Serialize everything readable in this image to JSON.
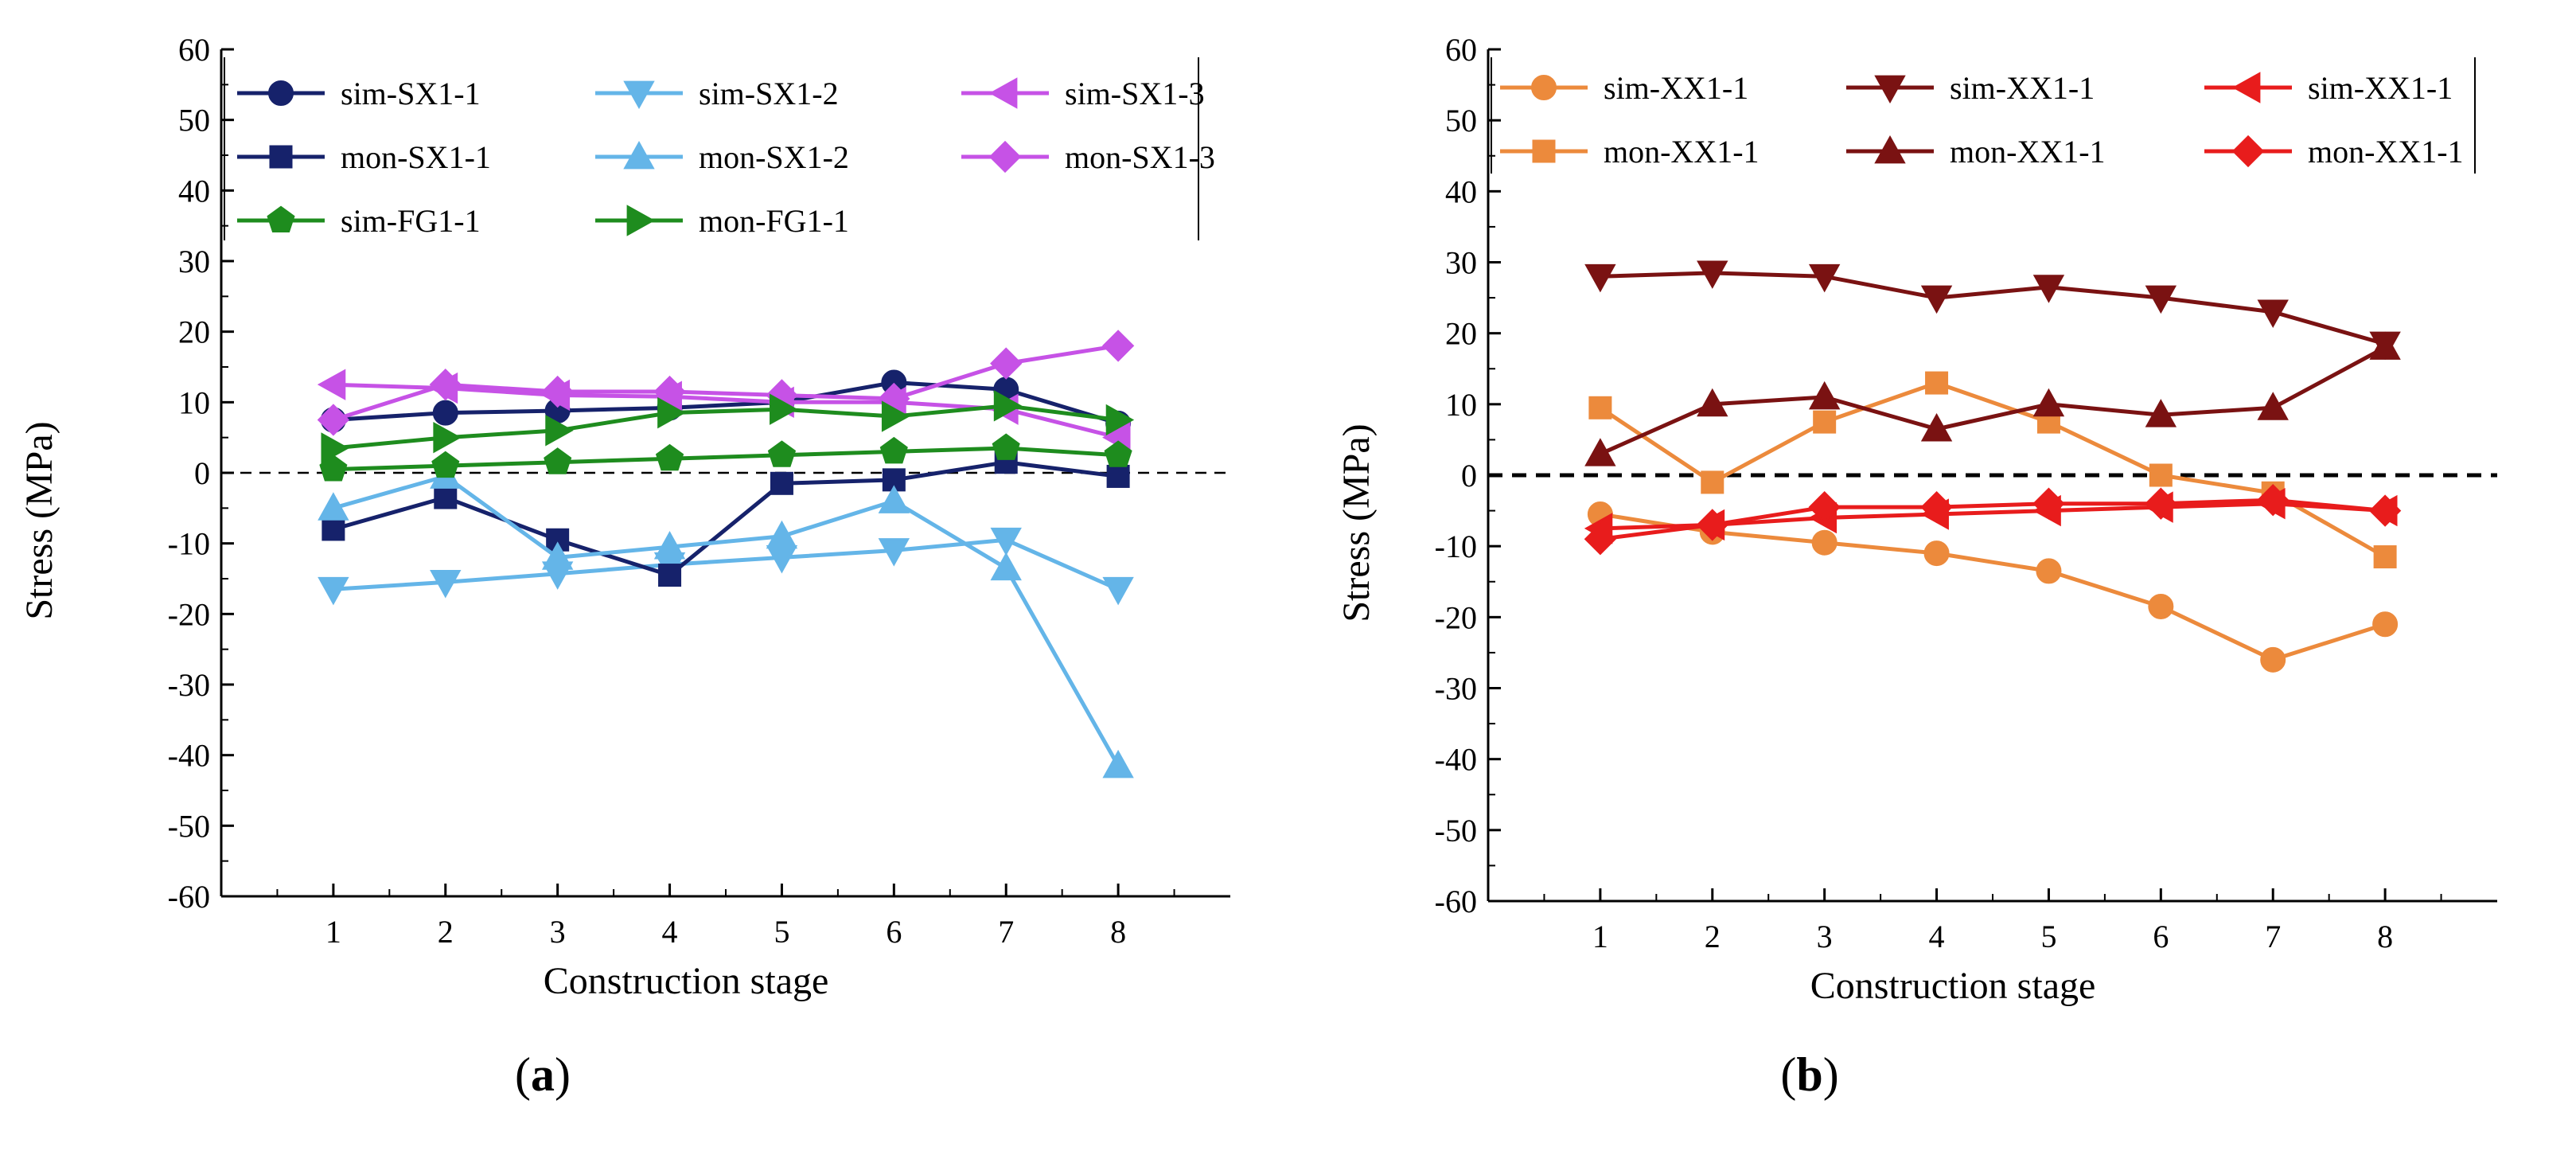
{
  "chart_data": [
    {
      "type": "line",
      "panel_label": "a",
      "xlabel": "Construction stage",
      "ylabel": "Stress (MPa)",
      "xlim": [
        0,
        9
      ],
      "ylim": [
        -60,
        60
      ],
      "x_ticks": [
        1,
        2,
        3,
        4,
        5,
        6,
        7,
        8
      ],
      "y_ticks": [
        60,
        50,
        40,
        30,
        20,
        10,
        0,
        -10,
        -20,
        -30,
        -40,
        -50,
        -60
      ],
      "zero_line": true,
      "legend_position": "top",
      "x": [
        1,
        2,
        3,
        4,
        5,
        6,
        7,
        8
      ],
      "series": [
        {
          "name": "sim-SX1-1",
          "color": "#16226b",
          "marker": "circle",
          "values": [
            7.5,
            8.5,
            8.8,
            9.2,
            10.0,
            12.8,
            11.8,
            7.0
          ]
        },
        {
          "name": "sim-SX1-2",
          "color": "#64b5e8",
          "marker": "triangle-down",
          "values": [
            -16.5,
            -15.5,
            -14.3,
            -13.0,
            -12.0,
            -11.0,
            -9.5,
            -16.5
          ]
        },
        {
          "name": "sim-SX1-3",
          "color": "#c652e6",
          "marker": "triangle-left",
          "values": [
            12.5,
            12.0,
            11.0,
            10.8,
            10.0,
            10.0,
            9.0,
            5.0
          ]
        },
        {
          "name": "mon-SX1-1",
          "color": "#16226b",
          "marker": "square",
          "values": [
            -8.0,
            -3.5,
            -9.5,
            -14.5,
            -1.5,
            -1.0,
            1.5,
            -0.5
          ]
        },
        {
          "name": "mon-SX1-2",
          "color": "#64b5e8",
          "marker": "triangle-up",
          "values": [
            -5.0,
            -0.5,
            -12.0,
            -10.5,
            -9.0,
            -4.0,
            -13.5,
            -41.5
          ]
        },
        {
          "name": "mon-SX1-3",
          "color": "#c652e6",
          "marker": "diamond",
          "values": [
            7.5,
            12.5,
            11.5,
            11.5,
            11.0,
            10.5,
            15.5,
            18.0
          ]
        },
        {
          "name": "sim-FG1-1",
          "color": "#1e8c1e",
          "marker": "pentagon",
          "values": [
            0.5,
            1.0,
            1.5,
            2.0,
            2.5,
            3.0,
            3.5,
            2.5
          ]
        },
        {
          "name": "mon-FG1-1",
          "color": "#1e8c1e",
          "marker": "triangle-right",
          "values": [
            3.5,
            5.0,
            6.0,
            8.5,
            9.0,
            8.0,
            9.5,
            7.5
          ]
        }
      ]
    },
    {
      "type": "line",
      "panel_label": "b",
      "xlabel": "Construction stage",
      "ylabel": "Stress (MPa)",
      "xlim": [
        0,
        9
      ],
      "ylim": [
        -60,
        60
      ],
      "x_ticks": [
        1,
        2,
        3,
        4,
        5,
        6,
        7,
        8
      ],
      "y_ticks": [
        60,
        50,
        40,
        30,
        20,
        10,
        0,
        -10,
        -20,
        -30,
        -40,
        -50,
        -60
      ],
      "zero_line": true,
      "legend_position": "top",
      "x": [
        1,
        2,
        3,
        4,
        5,
        6,
        7,
        8
      ],
      "series": [
        {
          "name": "sim-XX1-1",
          "color": "#ec8a3c",
          "marker": "circle",
          "values": [
            -5.5,
            -8.0,
            -9.5,
            -11.0,
            -13.5,
            -18.5,
            -26.0,
            -21.0
          ]
        },
        {
          "name": "mon-XX1-1",
          "color": "#ec8a3c",
          "marker": "square",
          "values": [
            9.5,
            -1.0,
            7.5,
            13.0,
            7.5,
            0.0,
            -2.5,
            -11.5
          ]
        },
        {
          "name": "sim-XX1-1",
          "color": "#7a1212",
          "marker": "triangle-down",
          "values": [
            28.0,
            28.5,
            28.0,
            25.0,
            26.5,
            25.0,
            23.0,
            18.5
          ]
        },
        {
          "name": "mon-XX1-1",
          "color": "#7a1212",
          "marker": "triangle-up",
          "values": [
            3.0,
            10.0,
            11.0,
            6.5,
            10.0,
            8.5,
            9.5,
            18.0
          ]
        },
        {
          "name": "sim-XX1-1",
          "color": "#e81c1c",
          "marker": "triangle-left",
          "values": [
            -7.5,
            -7.0,
            -6.0,
            -5.5,
            -5.0,
            -4.5,
            -4.0,
            -5.0
          ]
        },
        {
          "name": "mon-XX1-1",
          "color": "#e81c1c",
          "marker": "diamond",
          "values": [
            -9.0,
            -7.0,
            -4.5,
            -4.5,
            -4.0,
            -4.0,
            -3.5,
            -5.0
          ]
        }
      ]
    }
  ]
}
